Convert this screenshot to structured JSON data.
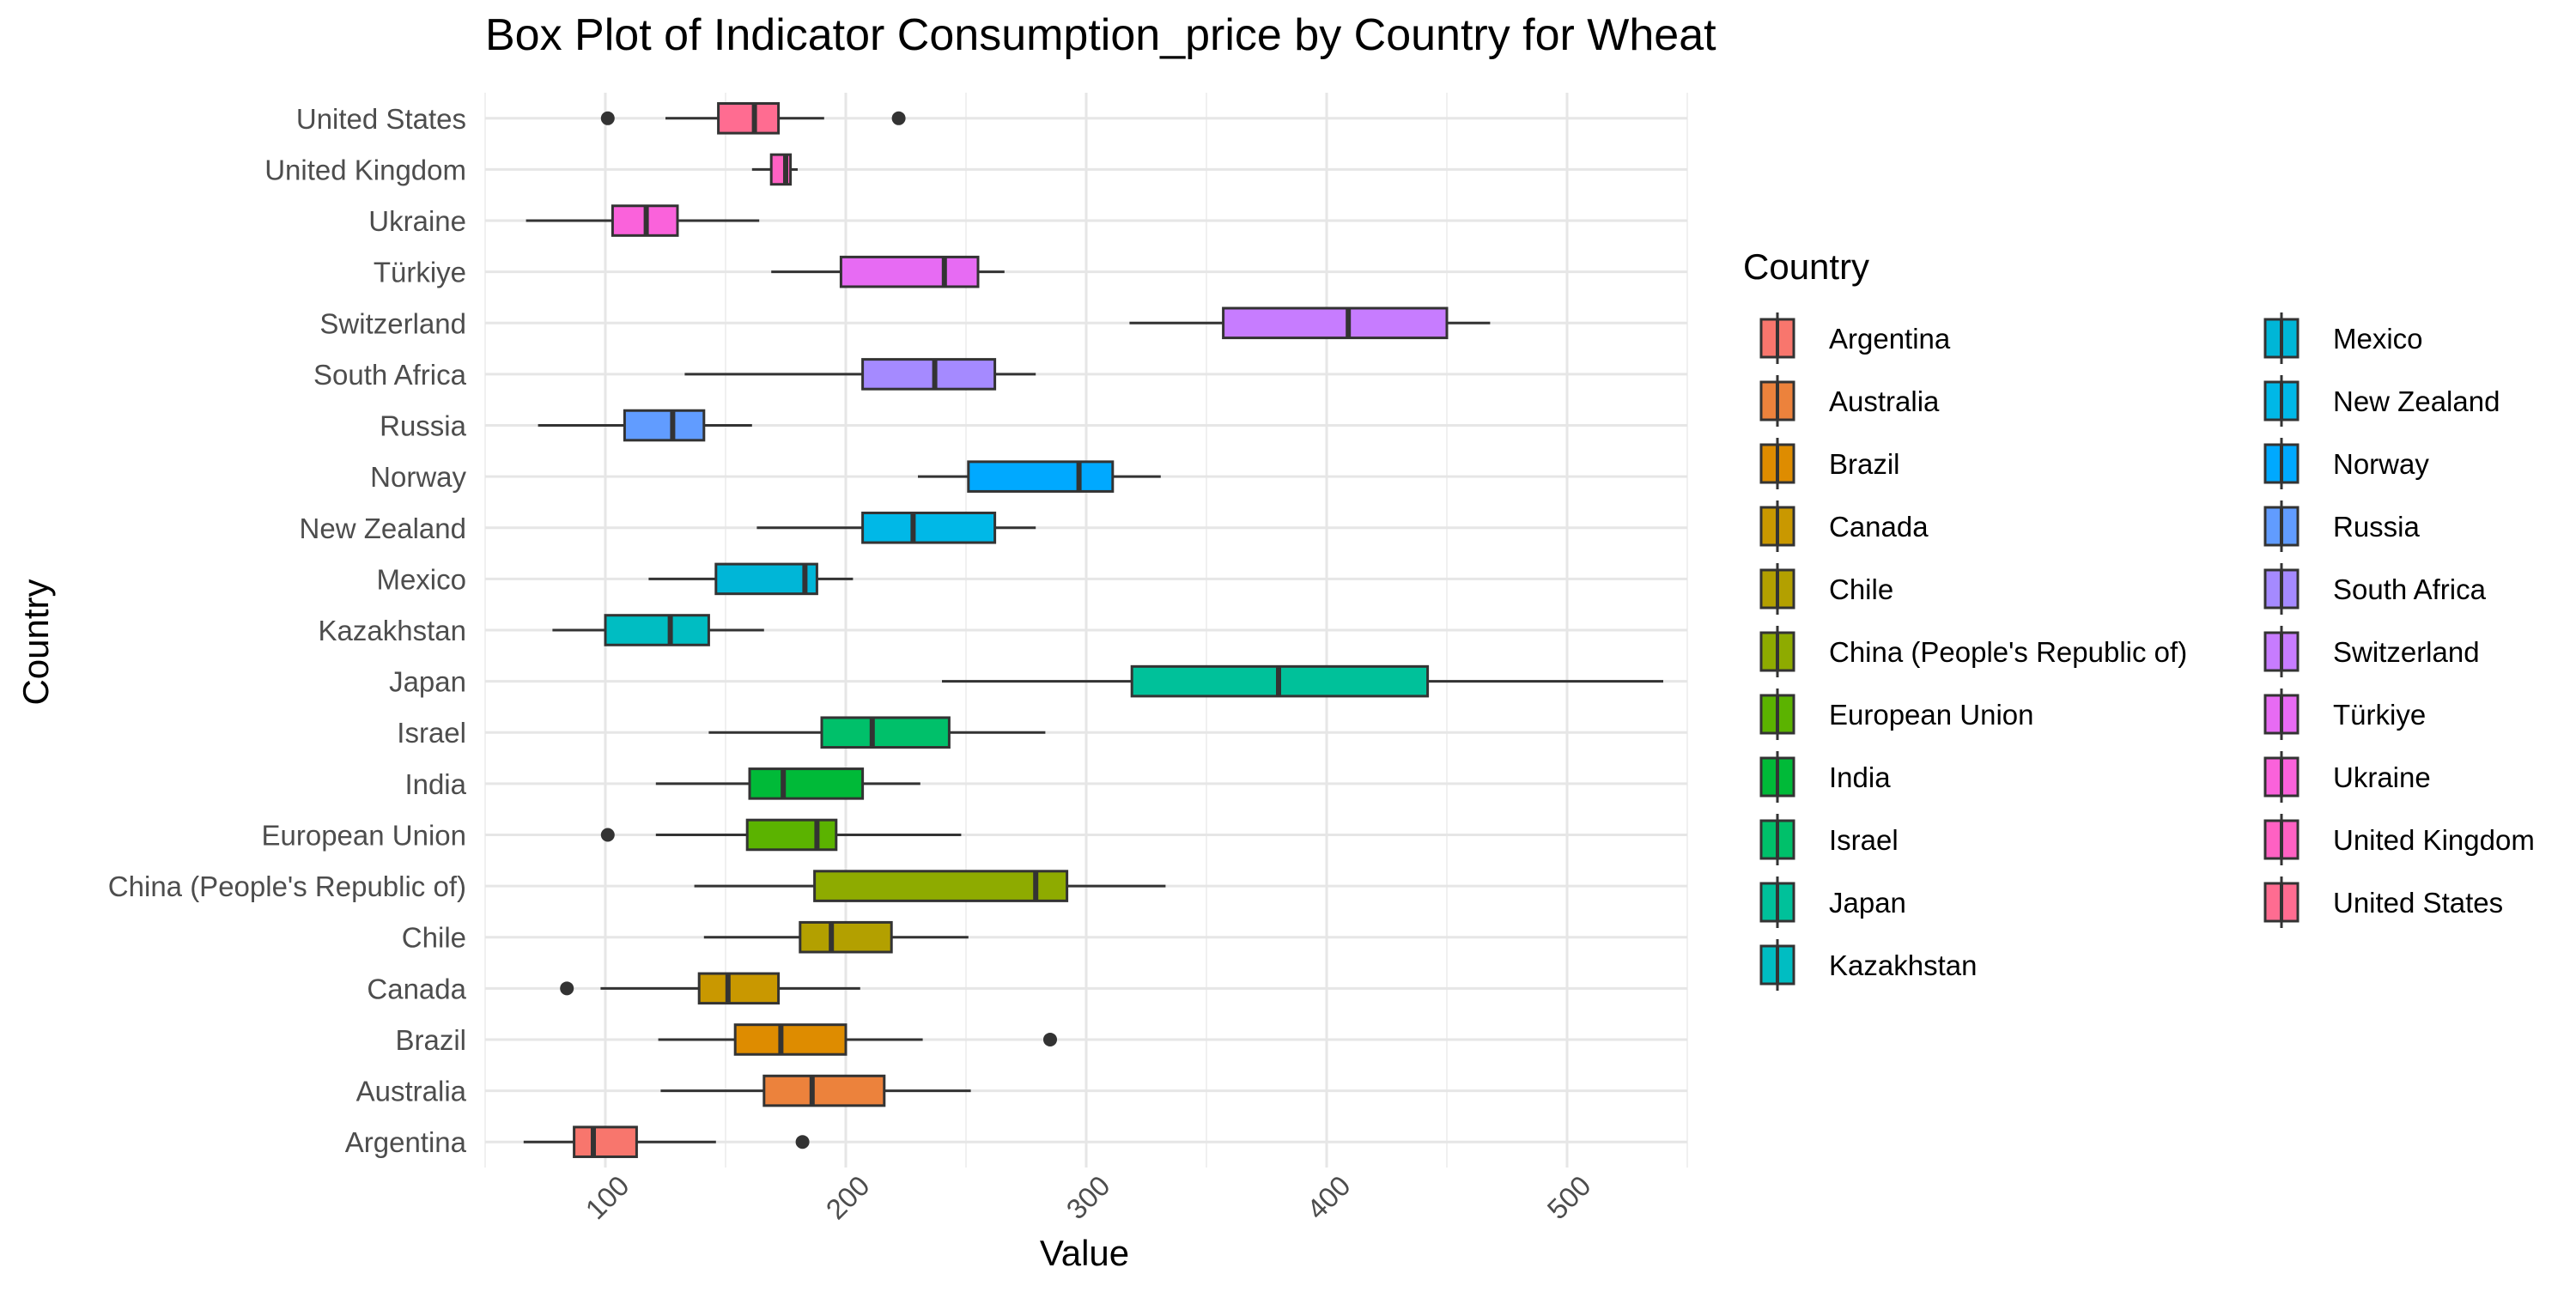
{
  "chart_data": {
    "type": "box",
    "title": "Box Plot of Indicator Consumption_price by Country for Wheat",
    "xlabel": "Value",
    "ylabel": "Country",
    "xlim": [
      50,
      550
    ],
    "x_ticks": [
      100,
      200,
      300,
      400,
      500
    ],
    "grid": true,
    "legend": {
      "title": "Country",
      "position": "right",
      "columns": 2
    },
    "categories": [
      "Argentina",
      "Australia",
      "Brazil",
      "Canada",
      "Chile",
      "China (People's Republic of)",
      "European Union",
      "India",
      "Israel",
      "Japan",
      "Kazakhstan",
      "Mexico",
      "New Zealand",
      "Norway",
      "Russia",
      "South Africa",
      "Switzerland",
      "Türkiye",
      "Ukraine",
      "United Kingdom",
      "United States"
    ],
    "series": [
      {
        "name": "Argentina",
        "color": "#F8766D",
        "whisker_low": 66,
        "q1": 87,
        "median": 95,
        "q3": 113,
        "whisker_high": 146,
        "outliers": [
          182
        ]
      },
      {
        "name": "Australia",
        "color": "#EC823C",
        "whisker_low": 123,
        "q1": 166,
        "median": 186,
        "q3": 216,
        "whisker_high": 252,
        "outliers": []
      },
      {
        "name": "Brazil",
        "color": "#DE8C00",
        "whisker_low": 122,
        "q1": 154,
        "median": 173,
        "q3": 200,
        "whisker_high": 232,
        "outliers": [
          285
        ]
      },
      {
        "name": "Canada",
        "color": "#C99800",
        "whisker_low": 98,
        "q1": 139,
        "median": 151,
        "q3": 172,
        "whisker_high": 206,
        "outliers": [
          84
        ]
      },
      {
        "name": "Chile",
        "color": "#B3A000",
        "whisker_low": 141,
        "q1": 181,
        "median": 194,
        "q3": 219,
        "whisker_high": 251,
        "outliers": []
      },
      {
        "name": "China (People's Republic of)",
        "color": "#8EAB00",
        "whisker_low": 137,
        "q1": 187,
        "median": 279,
        "q3": 292,
        "whisker_high": 333,
        "outliers": []
      },
      {
        "name": "European Union",
        "color": "#5BB300",
        "whisker_low": 121,
        "q1": 159,
        "median": 188,
        "q3": 196,
        "whisker_high": 248,
        "outliers": [
          101
        ]
      },
      {
        "name": "India",
        "color": "#00BA38",
        "whisker_low": 121,
        "q1": 160,
        "median": 174,
        "q3": 207,
        "whisker_high": 231,
        "outliers": []
      },
      {
        "name": "Israel",
        "color": "#00C06A",
        "whisker_low": 143,
        "q1": 190,
        "median": 211,
        "q3": 243,
        "whisker_high": 283,
        "outliers": []
      },
      {
        "name": "Japan",
        "color": "#00C19A",
        "whisker_low": 240,
        "q1": 319,
        "median": 380,
        "q3": 442,
        "whisker_high": 540,
        "outliers": []
      },
      {
        "name": "Kazakhstan",
        "color": "#00BDC2",
        "whisker_low": 78,
        "q1": 100,
        "median": 127,
        "q3": 143,
        "whisker_high": 166,
        "outliers": []
      },
      {
        "name": "Mexico",
        "color": "#00B6D7",
        "whisker_low": 118,
        "q1": 146,
        "median": 183,
        "q3": 188,
        "whisker_high": 203,
        "outliers": []
      },
      {
        "name": "New Zealand",
        "color": "#00B8E7",
        "whisker_low": 163,
        "q1": 207,
        "median": 228,
        "q3": 262,
        "whisker_high": 279,
        "outliers": []
      },
      {
        "name": "Norway",
        "color": "#00A9FF",
        "whisker_low": 230,
        "q1": 251,
        "median": 297,
        "q3": 311,
        "whisker_high": 331,
        "outliers": []
      },
      {
        "name": "Russia",
        "color": "#619CFF",
        "whisker_low": 72,
        "q1": 108,
        "median": 128,
        "q3": 141,
        "whisker_high": 161,
        "outliers": []
      },
      {
        "name": "South Africa",
        "color": "#A58AFF",
        "whisker_low": 133,
        "q1": 207,
        "median": 237,
        "q3": 262,
        "whisker_high": 279,
        "outliers": []
      },
      {
        "name": "Switzerland",
        "color": "#C77CFF",
        "whisker_low": 318,
        "q1": 357,
        "median": 409,
        "q3": 450,
        "whisker_high": 468,
        "outliers": []
      },
      {
        "name": "Türkiye",
        "color": "#E76BF3",
        "whisker_low": 169,
        "q1": 198,
        "median": 241,
        "q3": 255,
        "whisker_high": 266,
        "outliers": []
      },
      {
        "name": "Ukraine",
        "color": "#FA62DB",
        "whisker_low": 67,
        "q1": 103,
        "median": 117,
        "q3": 130,
        "whisker_high": 164,
        "outliers": []
      },
      {
        "name": "United Kingdom",
        "color": "#FF61C3",
        "whisker_low": 161,
        "q1": 169,
        "median": 175,
        "q3": 177,
        "whisker_high": 180,
        "outliers": []
      },
      {
        "name": "United States",
        "color": "#FF6C91",
        "whisker_low": 125,
        "q1": 147,
        "median": 162,
        "q3": 172,
        "whisker_high": 191,
        "outliers": [
          101,
          222
        ]
      }
    ]
  }
}
